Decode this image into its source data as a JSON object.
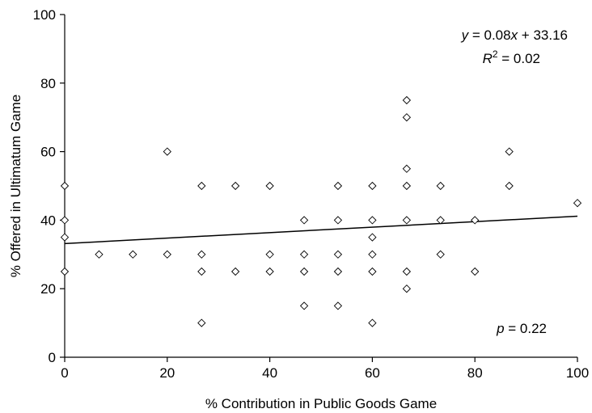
{
  "chart_data": {
    "type": "scatter",
    "xlabel": "% Contribution in Public Goods Game",
    "ylabel": "% Offered in Ultimatum Game",
    "xlim": [
      0,
      100
    ],
    "ylim": [
      0,
      100
    ],
    "xticks": [
      0,
      20,
      40,
      60,
      80,
      100
    ],
    "yticks": [
      0,
      20,
      40,
      60,
      80,
      100
    ],
    "grid": false,
    "marker": "diamond-open",
    "points": [
      {
        "x": 0,
        "y": 50
      },
      {
        "x": 0,
        "y": 40
      },
      {
        "x": 0,
        "y": 35
      },
      {
        "x": 0,
        "y": 25
      },
      {
        "x": 6.7,
        "y": 30
      },
      {
        "x": 13.3,
        "y": 30
      },
      {
        "x": 20,
        "y": 60
      },
      {
        "x": 20,
        "y": 30
      },
      {
        "x": 26.7,
        "y": 50
      },
      {
        "x": 26.7,
        "y": 30
      },
      {
        "x": 26.7,
        "y": 25
      },
      {
        "x": 26.7,
        "y": 10
      },
      {
        "x": 33.3,
        "y": 50
      },
      {
        "x": 33.3,
        "y": 25
      },
      {
        "x": 40,
        "y": 50
      },
      {
        "x": 40,
        "y": 30
      },
      {
        "x": 40,
        "y": 25
      },
      {
        "x": 46.7,
        "y": 40
      },
      {
        "x": 46.7,
        "y": 30
      },
      {
        "x": 46.7,
        "y": 25
      },
      {
        "x": 46.7,
        "y": 15
      },
      {
        "x": 53.3,
        "y": 50
      },
      {
        "x": 53.3,
        "y": 40
      },
      {
        "x": 53.3,
        "y": 30
      },
      {
        "x": 53.3,
        "y": 25
      },
      {
        "x": 53.3,
        "y": 15
      },
      {
        "x": 60,
        "y": 50
      },
      {
        "x": 60,
        "y": 40
      },
      {
        "x": 60,
        "y": 35
      },
      {
        "x": 60,
        "y": 30
      },
      {
        "x": 60,
        "y": 25
      },
      {
        "x": 60,
        "y": 10
      },
      {
        "x": 66.7,
        "y": 75
      },
      {
        "x": 66.7,
        "y": 70
      },
      {
        "x": 66.7,
        "y": 55
      },
      {
        "x": 66.7,
        "y": 50
      },
      {
        "x": 66.7,
        "y": 40
      },
      {
        "x": 66.7,
        "y": 25
      },
      {
        "x": 66.7,
        "y": 20
      },
      {
        "x": 73.3,
        "y": 50
      },
      {
        "x": 73.3,
        "y": 40
      },
      {
        "x": 73.3,
        "y": 30
      },
      {
        "x": 80,
        "y": 40
      },
      {
        "x": 80,
        "y": 25
      },
      {
        "x": 86.7,
        "y": 60
      },
      {
        "x": 86.7,
        "y": 50
      },
      {
        "x": 100,
        "y": 45
      }
    ],
    "trendline": {
      "slope": 0.08,
      "intercept": 33.16
    },
    "annotations": {
      "equation_prefix": "y",
      "equation_eq": " = 0.08",
      "equation_x": "x",
      "equation_rest": " + 33.16",
      "r2_prefix": "R",
      "r2_sup": "2",
      "r2_rest": " = 0.02",
      "p_prefix": "p",
      "p_rest": " = 0.22"
    }
  }
}
